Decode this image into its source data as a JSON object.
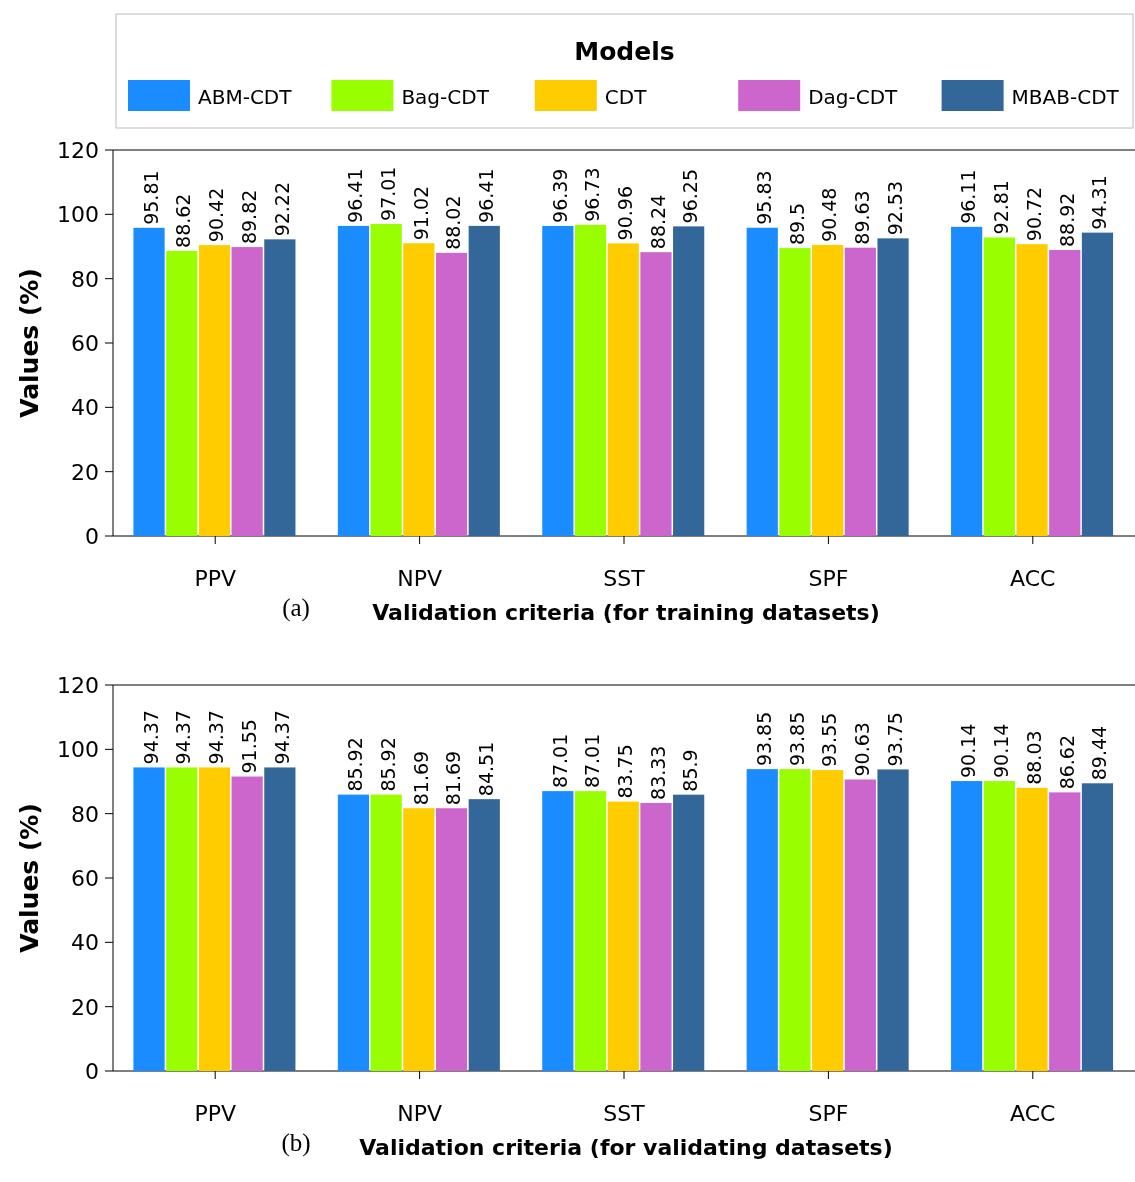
{
  "chart_data": [
    {
      "type": "bar",
      "legend_title": "Models",
      "legend": "top",
      "xlabel": "Validation criteria (for training datasets)",
      "ylabel": "Values (%)",
      "annotations": [
        "(a)"
      ],
      "categories": [
        "PPV",
        "NPV",
        "SST",
        "SPF",
        "ACC"
      ],
      "ylim": [
        0,
        120
      ],
      "yticks": [
        0,
        20,
        40,
        60,
        80,
        100,
        120
      ],
      "data_labels": true,
      "series": [
        {
          "name": "ABM-CDT",
          "color": "#1a8cff",
          "values": [
            95.81,
            96.41,
            96.39,
            95.83,
            96.11
          ]
        },
        {
          "name": "Bag-CDT",
          "color": "#99ff00",
          "values": [
            88.62,
            97.01,
            96.73,
            89.5,
            92.81
          ]
        },
        {
          "name": "CDT",
          "color": "#ffcc00",
          "values": [
            90.42,
            91.02,
            90.96,
            90.48,
            90.72
          ]
        },
        {
          "name": "Dag-CDT",
          "color": "#cc66cc",
          "values": [
            89.82,
            88.02,
            88.24,
            89.63,
            88.92
          ]
        },
        {
          "name": "MBAB-CDT",
          "color": "#336699",
          "values": [
            92.22,
            96.41,
            96.25,
            92.53,
            94.31
          ]
        }
      ]
    },
    {
      "type": "bar",
      "xlabel": "Validation criteria (for validating datasets)",
      "ylabel": "Values (%)",
      "annotations": [
        "(b)"
      ],
      "categories": [
        "PPV",
        "NPV",
        "SST",
        "SPF",
        "ACC"
      ],
      "ylim": [
        0,
        120
      ],
      "yticks": [
        0,
        20,
        40,
        60,
        80,
        100,
        120
      ],
      "data_labels": true,
      "series": [
        {
          "color": "#1a8cff",
          "values": [
            94.37,
            85.92,
            87.01,
            93.85,
            90.14
          ]
        },
        {
          "color": "#99ff00",
          "values": [
            94.37,
            85.92,
            87.01,
            93.85,
            90.14
          ]
        },
        {
          "color": "#ffcc00",
          "values": [
            94.37,
            81.69,
            83.75,
            93.55,
            88.03
          ]
        },
        {
          "color": "#cc66cc",
          "values": [
            91.55,
            81.69,
            83.33,
            90.63,
            86.62
          ]
        },
        {
          "color": "#336699",
          "values": [
            94.37,
            84.51,
            85.9,
            93.75,
            89.44
          ]
        }
      ]
    }
  ]
}
